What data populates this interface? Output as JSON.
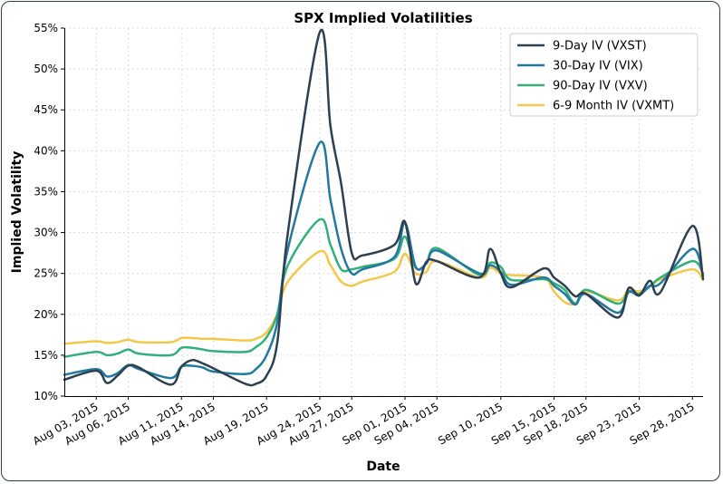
{
  "chart_data": {
    "type": "line",
    "title": "SPX Implied Volatilities",
    "xlabel": "Date",
    "ylabel": "Implied Volatility",
    "ylim": [
      0.1,
      0.55
    ],
    "y_ticks": [
      "10%",
      "15%",
      "20%",
      "25%",
      "30%",
      "35%",
      "40%",
      "45%",
      "50%",
      "55%"
    ],
    "x_tick_labels": [
      "Aug 03, 2015",
      "Aug 06, 2015",
      "Aug 11, 2015",
      "Aug 14, 2015",
      "Aug 19, 2015",
      "Aug 24, 2015",
      "Aug 27, 2015",
      "Sep 01, 2015",
      "Sep 04, 2015",
      "Sep 10, 2015",
      "Sep 15, 2015",
      "Sep 18, 2015",
      "Sep 23, 2015",
      "Sep 28, 2015"
    ],
    "grid": true,
    "legend_position": "top-right",
    "x": [
      "2015-07-31",
      "2015-08-03",
      "2015-08-04",
      "2015-08-05",
      "2015-08-06",
      "2015-08-07",
      "2015-08-10",
      "2015-08-11",
      "2015-08-12",
      "2015-08-13",
      "2015-08-14",
      "2015-08-17",
      "2015-08-18",
      "2015-08-19",
      "2015-08-20",
      "2015-08-21",
      "2015-08-24",
      "2015-08-25",
      "2015-08-26",
      "2015-08-27",
      "2015-08-28",
      "2015-08-31",
      "2015-09-01",
      "2015-09-02",
      "2015-09-03",
      "2015-09-04",
      "2015-09-08",
      "2015-09-09",
      "2015-09-10",
      "2015-09-11",
      "2015-09-14",
      "2015-09-15",
      "2015-09-16",
      "2015-09-17",
      "2015-09-18",
      "2015-09-21",
      "2015-09-22",
      "2015-09-23",
      "2015-09-24",
      "2015-09-25",
      "2015-09-28",
      "2015-09-29"
    ],
    "series": [
      {
        "name": "9-Day IV (VXST)",
        "color": "#2e4050",
        "values": [
          0.12,
          0.131,
          0.116,
          0.125,
          0.137,
          0.135,
          0.114,
          0.136,
          0.144,
          0.14,
          0.134,
          0.115,
          0.115,
          0.125,
          0.165,
          0.3,
          0.545,
          0.43,
          0.36,
          0.275,
          0.272,
          0.285,
          0.313,
          0.238,
          0.264,
          0.265,
          0.245,
          0.28,
          0.25,
          0.233,
          0.256,
          0.245,
          0.235,
          0.222,
          0.225,
          0.196,
          0.232,
          0.223,
          0.241,
          0.227,
          0.308,
          0.243
        ]
      },
      {
        "name": "30-Day IV (VIX)",
        "color": "#2279a0",
        "values": [
          0.126,
          0.133,
          0.124,
          0.128,
          0.138,
          0.133,
          0.122,
          0.136,
          0.137,
          0.135,
          0.13,
          0.127,
          0.133,
          0.15,
          0.19,
          0.28,
          0.41,
          0.34,
          0.28,
          0.25,
          0.255,
          0.27,
          0.312,
          0.258,
          0.262,
          0.278,
          0.25,
          0.26,
          0.252,
          0.236,
          0.245,
          0.235,
          0.225,
          0.212,
          0.225,
          0.202,
          0.227,
          0.223,
          0.235,
          0.238,
          0.28,
          0.247
        ]
      },
      {
        "name": "90-Day IV (VXV)",
        "color": "#33b07a",
        "values": [
          0.148,
          0.154,
          0.15,
          0.152,
          0.157,
          0.152,
          0.15,
          0.159,
          0.159,
          0.157,
          0.155,
          0.154,
          0.16,
          0.172,
          0.2,
          0.26,
          0.316,
          0.285,
          0.255,
          0.255,
          0.258,
          0.268,
          0.295,
          0.257,
          0.262,
          0.281,
          0.248,
          0.263,
          0.258,
          0.242,
          0.243,
          0.238,
          0.23,
          0.213,
          0.23,
          0.213,
          0.228,
          0.225,
          0.234,
          0.245,
          0.265,
          0.25
        ]
      },
      {
        "name": "6-9 Month IV (VXMT)",
        "color": "#f2c84b",
        "values": [
          0.164,
          0.167,
          0.165,
          0.166,
          0.169,
          0.166,
          0.166,
          0.171,
          0.171,
          0.17,
          0.17,
          0.168,
          0.17,
          0.178,
          0.2,
          0.24,
          0.277,
          0.26,
          0.24,
          0.235,
          0.24,
          0.252,
          0.274,
          0.25,
          0.252,
          0.265,
          0.245,
          0.257,
          0.25,
          0.248,
          0.245,
          0.228,
          0.215,
          0.213,
          0.228,
          0.217,
          0.23,
          0.228,
          0.234,
          0.243,
          0.255,
          0.242
        ]
      }
    ]
  }
}
